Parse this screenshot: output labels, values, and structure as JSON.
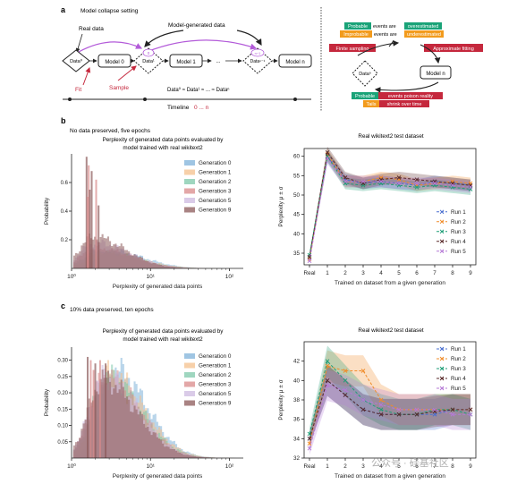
{
  "panel_a": {
    "label": "a",
    "title": "Model collapse setting",
    "real_data": "Real data",
    "model_generated_data": "Model-generated data",
    "nodes": {
      "data0": "Data⁰",
      "model0": "Model 0",
      "data1": "Data¹",
      "model1": "Model 1",
      "ellipsis": "...",
      "datan": "Dataⁿ⁻¹",
      "modeln": "Model n",
      "badge0": "0",
      "badgen": "n−1"
    },
    "fit": "Fit",
    "sample": "Sample",
    "equation": "Data⁰ ≈ Data¹ ≈ ... ≈ Dataⁿ",
    "timeline": "Timeline",
    "timeline_range": "0 ... n",
    "right": {
      "row1": {
        "a": "Probable",
        "b": "events are",
        "c": "overestimated"
      },
      "row2": {
        "a": "Improbable",
        "b": "events are",
        "c": "underestimated"
      },
      "finite_sampling": "Finite sampling",
      "approx_fitting": "Approximate fitting",
      "data_node": "Dataⁿ",
      "model_node": "Model n",
      "row3": {
        "a": "Probable",
        "b": "events poison reality"
      },
      "row4": {
        "a": "Tails",
        "b": "shrink over time"
      }
    }
  },
  "panel_b": {
    "label": "b",
    "subtitle": "No data preserved, five epochs",
    "hist_title": "Perplexity of generated data points evaluated by model trained with real wikitext2",
    "line_title": "Real wikitext2 test dataset"
  },
  "panel_c": {
    "label": "c",
    "subtitle": "10% data preserved, ten epochs",
    "hist_title": "Perplexity of generated data points evaluated by model trained with real wikitext2",
    "line_title": "Real wikitext2 test dataset"
  },
  "watermark": "公众号 · 硅基社区",
  "colors": {
    "red": "#c5283d",
    "purple": "#b35bd9",
    "green": "#1aa378",
    "orange": "#f29b1d",
    "gen0": "#7fb2d9",
    "gen1": "#f4c08c",
    "gen2": "#7fc8a9",
    "gen3": "#d98a8a",
    "gen5": "#cdb9e0",
    "gen9": "#8c5a5a",
    "run1": "#4a6fd0",
    "run2": "#f08c2a",
    "run3": "#1f9e77",
    "run4": "#5a2a2a",
    "run5": "#b57ad6"
  },
  "chart_data": [
    {
      "type": "area",
      "title": "Perplexity of generated data points evaluated by model trained with real wikitext2",
      "xlabel": "Perplexity of generated data points",
      "ylabel": "Probability",
      "xscale": "log",
      "xlim": [
        1,
        150
      ],
      "ylim": [
        0,
        0.8
      ],
      "xticks": [
        "10⁰",
        "10¹",
        "10²"
      ],
      "yticks": [
        "0.2",
        "0.4",
        "0.6"
      ],
      "legend": "top-right",
      "series": [
        {
          "name": "Generation 0",
          "peak_x": 3.2,
          "peak_y": 0.12,
          "width": 0.42,
          "color": "#7fb2d9"
        },
        {
          "name": "Generation 1",
          "peak_x": 2.6,
          "peak_y": 0.11,
          "width": 0.45,
          "color": "#f4c08c"
        },
        {
          "name": "Generation 2",
          "peak_x": 2.3,
          "peak_y": 0.12,
          "width": 0.45,
          "color": "#7fc8a9"
        },
        {
          "name": "Generation 3",
          "peak_x": 2.1,
          "peak_y": 0.14,
          "width": 0.45,
          "color": "#d98a8a"
        },
        {
          "name": "Generation 5",
          "peak_x": 2.0,
          "peak_y": 0.18,
          "width": 0.42,
          "color": "#cdb9e0"
        },
        {
          "name": "Generation 9",
          "peak_x": 1.9,
          "peak_y": 0.22,
          "width": 0.4,
          "color": "#8c5a5a"
        }
      ],
      "spikes": [
        [
          1.55,
          0.78
        ],
        [
          1.65,
          0.72
        ],
        [
          1.8,
          0.68
        ],
        [
          2.05,
          0.62
        ],
        [
          1.7,
          0.55
        ],
        [
          1.6,
          0.5
        ],
        [
          2.2,
          0.44
        ]
      ]
    },
    {
      "type": "line",
      "title": "Real wikitext2 test dataset",
      "xlabel": "Trained on dataset from a given generation",
      "ylabel": "Perplexity μ ± σ",
      "categories": [
        "Real",
        "1",
        "2",
        "3",
        "4",
        "5",
        "6",
        "7",
        "8",
        "9"
      ],
      "ylim": [
        32,
        62
      ],
      "yticks": [
        35,
        40,
        45,
        50,
        55,
        60
      ],
      "legend": "center-right",
      "series": [
        {
          "name": "Run 1",
          "values": [
            34.0,
            60.0,
            54.0,
            53.0,
            53.5,
            53.0,
            52.5,
            53.5,
            53.0,
            52.5
          ],
          "color": "#4a6fd0"
        },
        {
          "name": "Run 2",
          "values": [
            33.5,
            60.5,
            53.5,
            53.5,
            54.5,
            54.0,
            52.5,
            53.0,
            53.5,
            53.0
          ],
          "color": "#f08c2a"
        },
        {
          "name": "Run 3",
          "values": [
            34.5,
            60.0,
            53.0,
            52.5,
            53.0,
            52.5,
            52.0,
            52.5,
            52.0,
            51.5
          ],
          "color": "#1f9e77"
        },
        {
          "name": "Run 4",
          "values": [
            34.0,
            61.0,
            54.5,
            53.0,
            54.0,
            54.5,
            54.0,
            53.5,
            53.0,
            52.5
          ],
          "color": "#5a2a2a"
        },
        {
          "name": "Run 5",
          "values": [
            33.0,
            59.5,
            53.5,
            53.5,
            53.5,
            53.0,
            53.0,
            53.0,
            52.5,
            52.0
          ],
          "color": "#b57ad6"
        }
      ],
      "spread": 1.5
    },
    {
      "type": "area",
      "title": "Perplexity of generated data points evaluated by model trained with real wikitext2",
      "xlabel": "Perplexity of generated data points",
      "ylabel": "Probability",
      "xscale": "log",
      "xlim": [
        1,
        150
      ],
      "ylim": [
        0,
        0.34
      ],
      "xticks": [
        "10⁰",
        "10¹",
        "10²"
      ],
      "yticks": [
        "0.05",
        "0.10",
        "0.15",
        "0.20",
        "0.25",
        "0.30"
      ],
      "legend": "top-right",
      "series": [
        {
          "name": "Generation 0",
          "peak_x": 3.5,
          "peak_y": 0.27,
          "width": 0.4,
          "color": "#7fb2d9"
        },
        {
          "name": "Generation 1",
          "peak_x": 3.0,
          "peak_y": 0.26,
          "width": 0.42,
          "color": "#f4c08c"
        },
        {
          "name": "Generation 2",
          "peak_x": 2.8,
          "peak_y": 0.25,
          "width": 0.42,
          "color": "#7fc8a9"
        },
        {
          "name": "Generation 3",
          "peak_x": 2.7,
          "peak_y": 0.25,
          "width": 0.42,
          "color": "#d98a8a"
        },
        {
          "name": "Generation 5",
          "peak_x": 2.6,
          "peak_y": 0.25,
          "width": 0.42,
          "color": "#cdb9e0"
        },
        {
          "name": "Generation 9",
          "peak_x": 2.5,
          "peak_y": 0.24,
          "width": 0.42,
          "color": "#8c5a5a"
        }
      ],
      "spikes": [
        [
          1.6,
          0.31
        ],
        [
          1.75,
          0.3
        ],
        [
          2.0,
          0.29
        ],
        [
          2.3,
          0.3
        ],
        [
          2.7,
          0.29
        ],
        [
          1.9,
          0.27
        ]
      ]
    },
    {
      "type": "line",
      "title": "Real wikitext2 test dataset",
      "xlabel": "Trained on dataset from a given generation",
      "ylabel": "Perplexity μ ± σ",
      "categories": [
        "Real",
        "1",
        "2",
        "3",
        "4",
        "5",
        "6",
        "7",
        "8",
        "9"
      ],
      "ylim": [
        32,
        44
      ],
      "yticks": [
        32,
        34,
        36,
        38,
        40,
        42
      ],
      "legend": "top-right",
      "series": [
        {
          "name": "Run 1",
          "values": [
            34.0,
            40.0,
            38.5,
            37.0,
            36.5,
            36.5,
            36.5,
            36.5,
            37.0,
            37.0
          ],
          "color": "#4a6fd0"
        },
        {
          "name": "Run 2",
          "values": [
            33.5,
            41.5,
            41.0,
            41.0,
            38.0,
            37.0,
            37.0,
            37.0,
            37.0,
            37.0
          ],
          "color": "#f08c2a"
        },
        {
          "name": "Run 3",
          "values": [
            34.5,
            42.0,
            40.0,
            38.0,
            37.0,
            36.5,
            36.5,
            37.0,
            37.0,
            36.5
          ],
          "color": "#1f9e77"
        },
        {
          "name": "Run 4",
          "values": [
            34.0,
            40.0,
            38.5,
            37.0,
            36.5,
            36.5,
            36.5,
            36.8,
            37.0,
            37.0
          ],
          "color": "#5a2a2a"
        },
        {
          "name": "Run 5",
          "values": [
            33.0,
            39.5,
            39.0,
            38.0,
            37.5,
            37.0,
            37.0,
            37.0,
            36.5,
            36.5
          ],
          "color": "#b57ad6"
        }
      ],
      "spread": 1.6
    }
  ]
}
